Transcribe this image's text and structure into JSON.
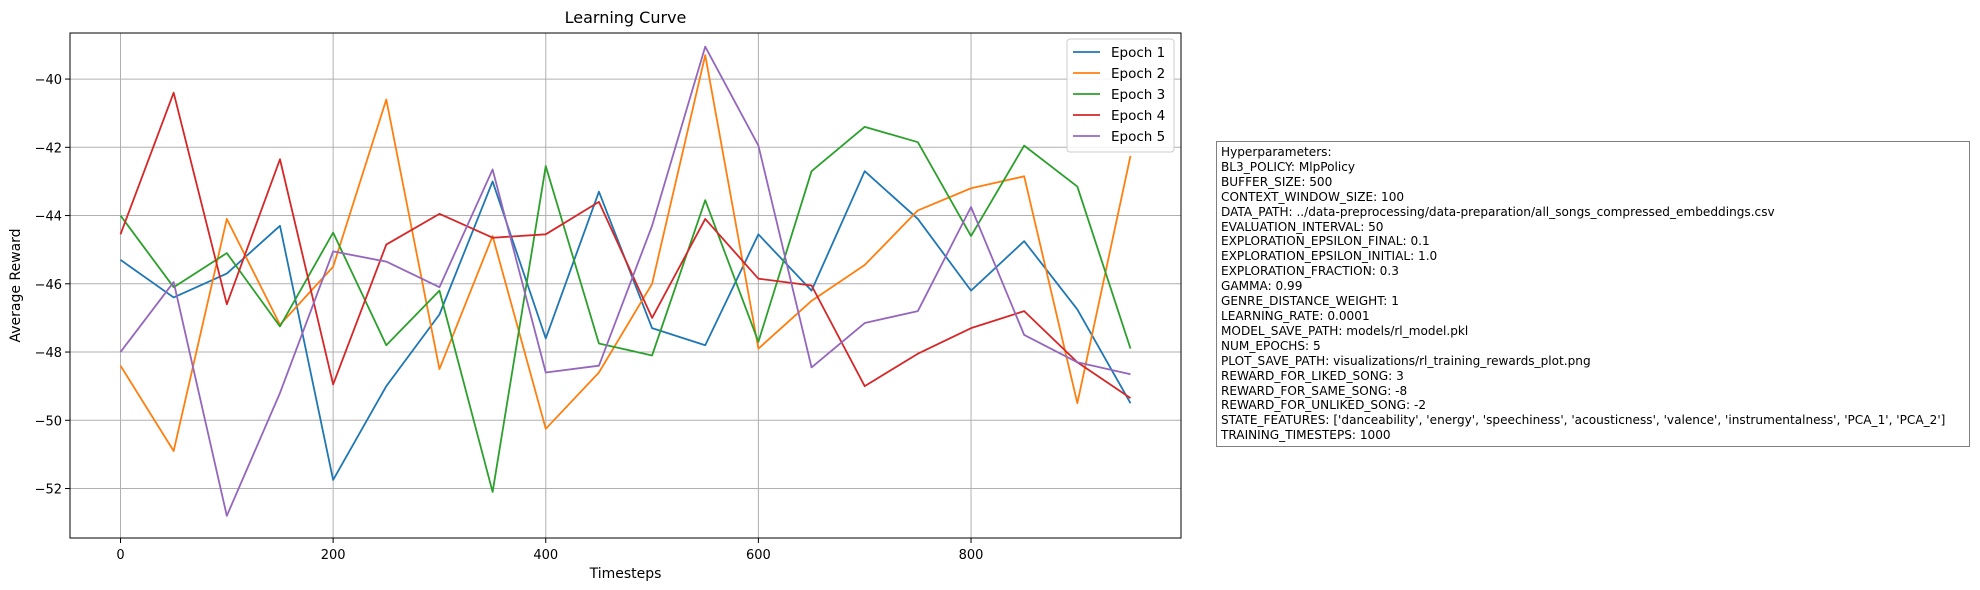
{
  "chart_data": {
    "type": "line",
    "title": "Learning Curve",
    "xlabel": "Timesteps",
    "ylabel": "Average Reward",
    "xlim": [
      -47.5,
      997.5
    ],
    "ylim": [
      -53.45,
      -38.65
    ],
    "xticks": [
      0,
      200,
      400,
      600,
      800
    ],
    "yticks": [
      -52,
      -50,
      -48,
      -46,
      -44,
      -42,
      -40
    ],
    "grid": true,
    "legend_position": "top-right",
    "x": [
      0,
      50,
      100,
      150,
      200,
      250,
      300,
      350,
      400,
      450,
      500,
      550,
      600,
      650,
      700,
      750,
      800,
      850,
      900,
      950
    ],
    "series": [
      {
        "name": "Epoch 1",
        "color": "#1f77b4",
        "values": [
          -45.3,
          -46.4,
          -45.7,
          -44.3,
          -51.75,
          -49.0,
          -46.9,
          -43.0,
          -47.6,
          -43.3,
          -47.3,
          -47.8,
          -44.55,
          -46.2,
          -42.7,
          -44.1,
          -46.2,
          -44.75,
          -46.75,
          -49.5
        ]
      },
      {
        "name": "Epoch 2",
        "color": "#ff7f0e",
        "values": [
          -48.4,
          -50.9,
          -44.1,
          -47.2,
          -45.5,
          -40.6,
          -48.5,
          -44.6,
          -50.25,
          -48.6,
          -46.0,
          -39.3,
          -47.9,
          -46.5,
          -45.45,
          -43.85,
          -43.2,
          -42.85,
          -49.5,
          -42.25
        ]
      },
      {
        "name": "Epoch 3",
        "color": "#2ca02c",
        "values": [
          -44.0,
          -46.1,
          -45.1,
          -47.25,
          -44.5,
          -47.8,
          -46.2,
          -52.1,
          -42.55,
          -47.75,
          -48.1,
          -43.55,
          -47.7,
          -42.7,
          -41.4,
          -41.85,
          -44.6,
          -41.95,
          -43.15,
          -47.9
        ]
      },
      {
        "name": "Epoch 4",
        "color": "#d62728",
        "values": [
          -44.55,
          -40.4,
          -46.6,
          -42.35,
          -48.95,
          -44.85,
          -43.95,
          -44.65,
          -44.55,
          -43.6,
          -47.0,
          -44.1,
          -45.85,
          -46.05,
          -49.0,
          -48.05,
          -47.3,
          -46.8,
          -48.3,
          -49.35
        ]
      },
      {
        "name": "Epoch 5",
        "color": "#9467bd",
        "values": [
          -48.0,
          -45.95,
          -52.8,
          -49.2,
          -45.05,
          -45.35,
          -46.1,
          -42.65,
          -48.6,
          -48.4,
          -44.3,
          -39.05,
          -41.95,
          -48.45,
          -47.15,
          -46.8,
          -43.75,
          -47.5,
          -48.3,
          -48.65
        ]
      }
    ]
  },
  "hyperparameters": {
    "heading": "Hyperparameters:",
    "lines": [
      "BL3_POLICY: MlpPolicy",
      "BUFFER_SIZE: 500",
      "CONTEXT_WINDOW_SIZE: 100",
      "DATA_PATH: ../data-preprocessing/data-preparation/all_songs_compressed_embeddings.csv",
      "EVALUATION_INTERVAL: 50",
      "EXPLORATION_EPSILON_FINAL: 0.1",
      "EXPLORATION_EPSILON_INITIAL: 1.0",
      "EXPLORATION_FRACTION: 0.3",
      "GAMMA: 0.99",
      "GENRE_DISTANCE_WEIGHT: 1",
      "LEARNING_RATE: 0.0001",
      "MODEL_SAVE_PATH: models/rl_model.pkl",
      "NUM_EPOCHS: 5",
      "PLOT_SAVE_PATH: visualizations/rl_training_rewards_plot.png",
      "REWARD_FOR_LIKED_SONG: 3",
      "REWARD_FOR_SAME_SONG: -8",
      "REWARD_FOR_UNLIKED_SONG: -2",
      "STATE_FEATURES: ['danceability', 'energy', 'speechiness', 'acousticness', 'valence', 'instrumentalness', 'PCA_1', 'PCA_2']",
      "TRAINING_TIMESTEPS: 1000"
    ]
  }
}
